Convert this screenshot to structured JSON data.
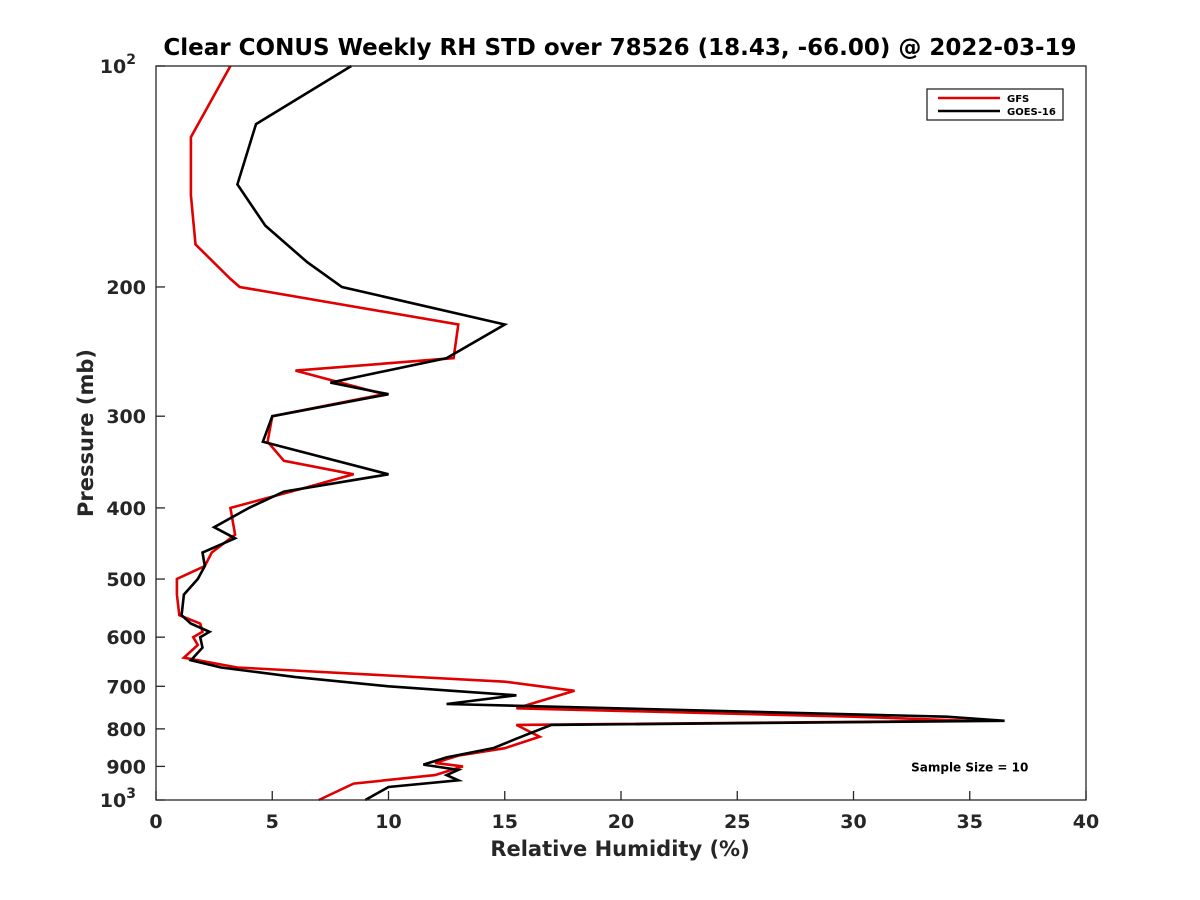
{
  "chart_data": {
    "type": "line",
    "title": "Clear CONUS Weekly RH STD over 78526 (18.43, -66.00) @ 2022-03-19",
    "xlabel": "Relative Humidity (%)",
    "ylabel": "Pressure (mb)",
    "xlim": [
      0,
      40
    ],
    "ylim": [
      100,
      1000
    ],
    "yscale": "log",
    "y_reversed": true,
    "grid": false,
    "legend_position": "top-right",
    "x_ticks": [
      "0",
      "5",
      "10",
      "15",
      "20",
      "25",
      "30",
      "35",
      "40"
    ],
    "y_ticks": [
      {
        "value": 100,
        "base": "10",
        "exp": "2"
      },
      {
        "value": 200,
        "label": "200"
      },
      {
        "value": 300,
        "label": "300"
      },
      {
        "value": 400,
        "label": "400"
      },
      {
        "value": 500,
        "label": "500"
      },
      {
        "value": 600,
        "label": "600"
      },
      {
        "value": 700,
        "label": "700"
      },
      {
        "value": 800,
        "label": "800"
      },
      {
        "value": 900,
        "label": "900"
      },
      {
        "value": 1000,
        "base": "10",
        "exp": "3"
      }
    ],
    "series": [
      {
        "name": "GFS",
        "color": "#e00000",
        "points": [
          [
            3.2,
            100
          ],
          [
            1.5,
            125
          ],
          [
            1.5,
            150
          ],
          [
            1.7,
            175
          ],
          [
            3.2,
            195
          ],
          [
            3.6,
            200
          ],
          [
            13.0,
            225
          ],
          [
            12.8,
            250
          ],
          [
            6.0,
            260
          ],
          [
            9.8,
            280
          ],
          [
            5.0,
            300
          ],
          [
            4.8,
            325
          ],
          [
            5.5,
            345
          ],
          [
            8.5,
            360
          ],
          [
            6.5,
            375
          ],
          [
            3.2,
            400
          ],
          [
            3.4,
            435
          ],
          [
            2.4,
            460
          ],
          [
            2.1,
            480
          ],
          [
            0.9,
            500
          ],
          [
            0.9,
            525
          ],
          [
            1.0,
            560
          ],
          [
            1.9,
            575
          ],
          [
            2.0,
            590
          ],
          [
            1.6,
            600
          ],
          [
            1.8,
            615
          ],
          [
            1.2,
            640
          ],
          [
            3.5,
            660
          ],
          [
            15.0,
            690
          ],
          [
            18.0,
            710
          ],
          [
            15.5,
            750
          ],
          [
            30.0,
            770
          ],
          [
            35.0,
            780
          ],
          [
            15.5,
            790
          ],
          [
            16.5,
            820
          ],
          [
            15.0,
            850
          ],
          [
            13.0,
            870
          ],
          [
            12.0,
            890
          ],
          [
            13.2,
            900
          ],
          [
            12.0,
            925
          ],
          [
            8.5,
            950
          ],
          [
            7.0,
            1000
          ]
        ]
      },
      {
        "name": "GOES-16",
        "color": "#000000",
        "points": [
          [
            8.4,
            100
          ],
          [
            4.3,
            120
          ],
          [
            3.5,
            145
          ],
          [
            4.7,
            165
          ],
          [
            6.5,
            185
          ],
          [
            8.0,
            200
          ],
          [
            15.0,
            225
          ],
          [
            12.5,
            250
          ],
          [
            7.5,
            270
          ],
          [
            10.0,
            280
          ],
          [
            5.0,
            300
          ],
          [
            4.6,
            325
          ],
          [
            10.0,
            360
          ],
          [
            5.5,
            380
          ],
          [
            4.0,
            400
          ],
          [
            2.5,
            425
          ],
          [
            3.4,
            440
          ],
          [
            2.0,
            460
          ],
          [
            2.1,
            480
          ],
          [
            1.8,
            500
          ],
          [
            1.2,
            525
          ],
          [
            1.1,
            560
          ],
          [
            1.5,
            575
          ],
          [
            2.3,
            590
          ],
          [
            1.9,
            600
          ],
          [
            2.0,
            620
          ],
          [
            1.5,
            645
          ],
          [
            2.8,
            660
          ],
          [
            6.0,
            680
          ],
          [
            10.0,
            700
          ],
          [
            15.5,
            720
          ],
          [
            12.5,
            740
          ],
          [
            34.0,
            770
          ],
          [
            36.5,
            780
          ],
          [
            17.0,
            790
          ],
          [
            15.5,
            825
          ],
          [
            14.5,
            850
          ],
          [
            12.5,
            875
          ],
          [
            11.5,
            895
          ],
          [
            13.0,
            910
          ],
          [
            12.5,
            925
          ],
          [
            13.0,
            940
          ],
          [
            10.0,
            960
          ],
          [
            9.0,
            1000
          ]
        ]
      }
    ],
    "annotations": [
      {
        "text": "Sample Size = 10",
        "x": 35,
        "y": 900
      }
    ]
  }
}
